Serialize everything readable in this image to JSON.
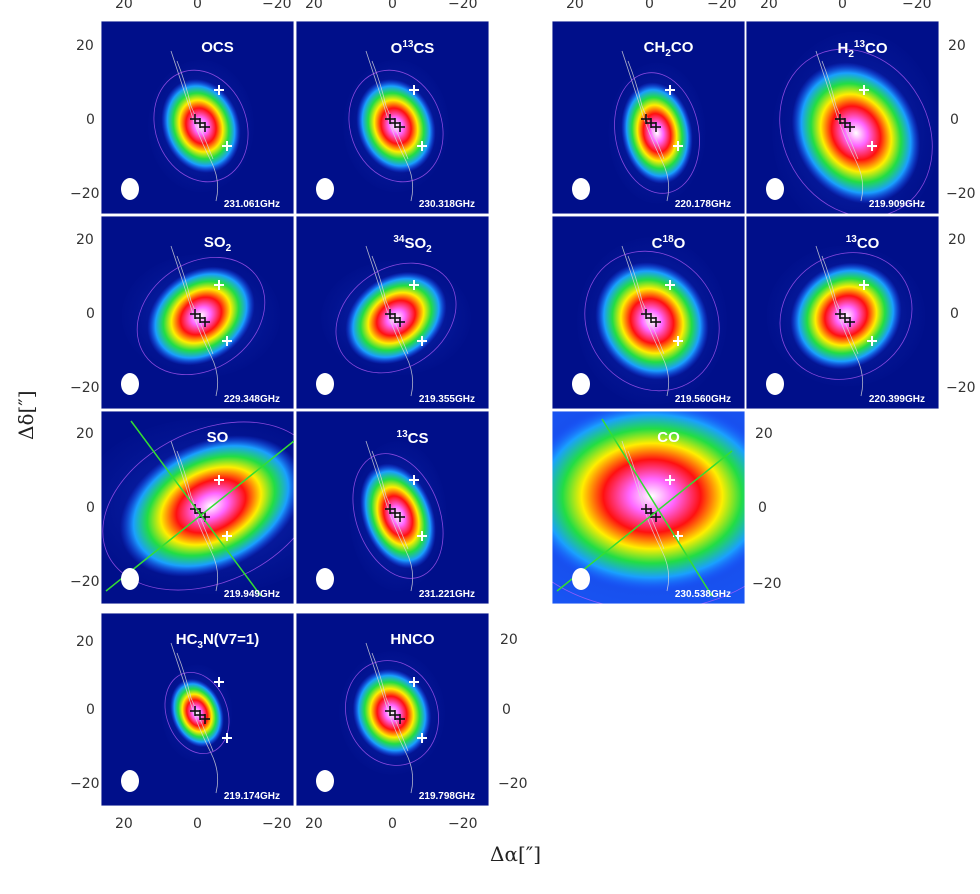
{
  "axes": {
    "xlabel": "Δα[″]",
    "ylabel": "Δδ[″]",
    "ticks": [
      "20",
      "0",
      "−20"
    ]
  },
  "panels": [
    {
      "id": "ocs",
      "label": "OCS",
      "sup": "",
      "freq": "231.061GHz"
    },
    {
      "id": "o13cs",
      "label": "O",
      "sup": "13",
      "tail": "CS",
      "freq": "230.318GHz"
    },
    {
      "id": "ch2co",
      "label": "CH",
      "sub": "2",
      "tail": "CO",
      "freq": "220.178GHz"
    },
    {
      "id": "h213co",
      "label": "H",
      "sub": "2",
      "sup": "13",
      "tail": "CO",
      "freq": "219.909GHz"
    },
    {
      "id": "so2",
      "label": "SO",
      "sub": "2",
      "freq": "229.348GHz"
    },
    {
      "id": "34so2",
      "pre": "34",
      "label": "SO",
      "sub": "2",
      "freq": "219.355GHz"
    },
    {
      "id": "c18o",
      "label": "C",
      "sup": "18",
      "tail": "O",
      "freq": "219.560GHz"
    },
    {
      "id": "13co",
      "pre": "13",
      "label": "CO",
      "freq": "220.399GHz"
    },
    {
      "id": "so",
      "label": "SO",
      "freq": "219.949GHz"
    },
    {
      "id": "13cs",
      "pre": "13",
      "label": "CS",
      "freq": "231.221GHz"
    },
    {
      "id": "co",
      "label": "CO",
      "freq": "230.538GHz"
    },
    {
      "id": "hc3n",
      "label": "HC",
      "sub": "3",
      "tail": "N(V7=1)",
      "freq": "219.174GHz"
    },
    {
      "id": "hnco",
      "label": "HNCO",
      "freq": "219.798GHz"
    }
  ]
}
